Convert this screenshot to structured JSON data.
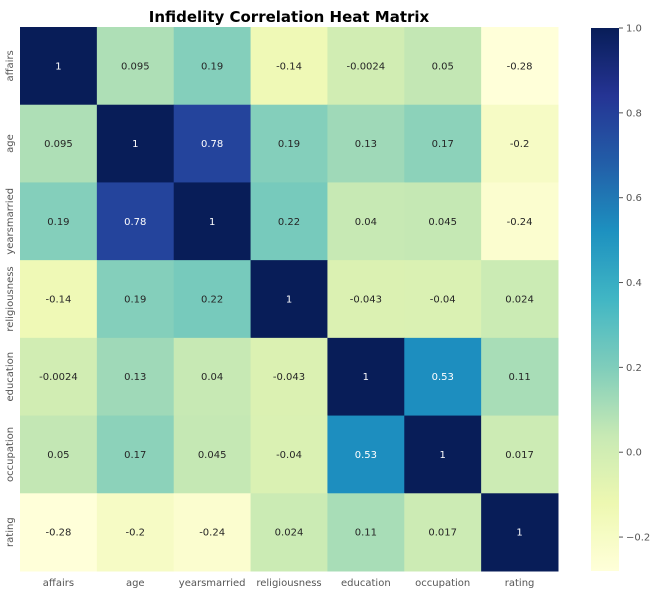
{
  "chart_data": {
    "type": "heatmap",
    "title": "Infidelity Correlation Heat Matrix",
    "xlabel": "",
    "ylabel": "",
    "x_categories": [
      "affairs",
      "age",
      "yearsmarried",
      "religiousness",
      "education",
      "occupation",
      "rating"
    ],
    "y_categories": [
      "affairs",
      "age",
      "yearsmarried",
      "religiousness",
      "education",
      "occupation",
      "rating"
    ],
    "values": [
      [
        1,
        0.095,
        0.19,
        -0.14,
        -0.0024,
        0.05,
        -0.28
      ],
      [
        0.095,
        1,
        0.78,
        0.19,
        0.13,
        0.17,
        -0.2
      ],
      [
        0.19,
        0.78,
        1,
        0.22,
        0.04,
        0.045,
        -0.24
      ],
      [
        -0.14,
        0.19,
        0.22,
        1,
        -0.043,
        -0.04,
        0.024
      ],
      [
        -0.0024,
        0.13,
        0.04,
        -0.043,
        1,
        0.53,
        0.11
      ],
      [
        0.05,
        0.17,
        0.045,
        -0.04,
        0.53,
        1,
        0.017
      ],
      [
        -0.28,
        -0.2,
        -0.24,
        0.024,
        0.11,
        0.017,
        1
      ]
    ],
    "colorscale": "YlGnBu",
    "vmin": -0.28,
    "vmax": 1.0,
    "colorbar_ticks": [
      1.0,
      0.8,
      0.6,
      0.4,
      0.2,
      0.0,
      -0.2
    ],
    "colorbar_tick_labels": [
      "1.0",
      "0.8",
      "0.6",
      "0.4",
      "0.2",
      "0.0",
      "−0.2"
    ],
    "grid": false,
    "legend": "colorbar-right"
  }
}
